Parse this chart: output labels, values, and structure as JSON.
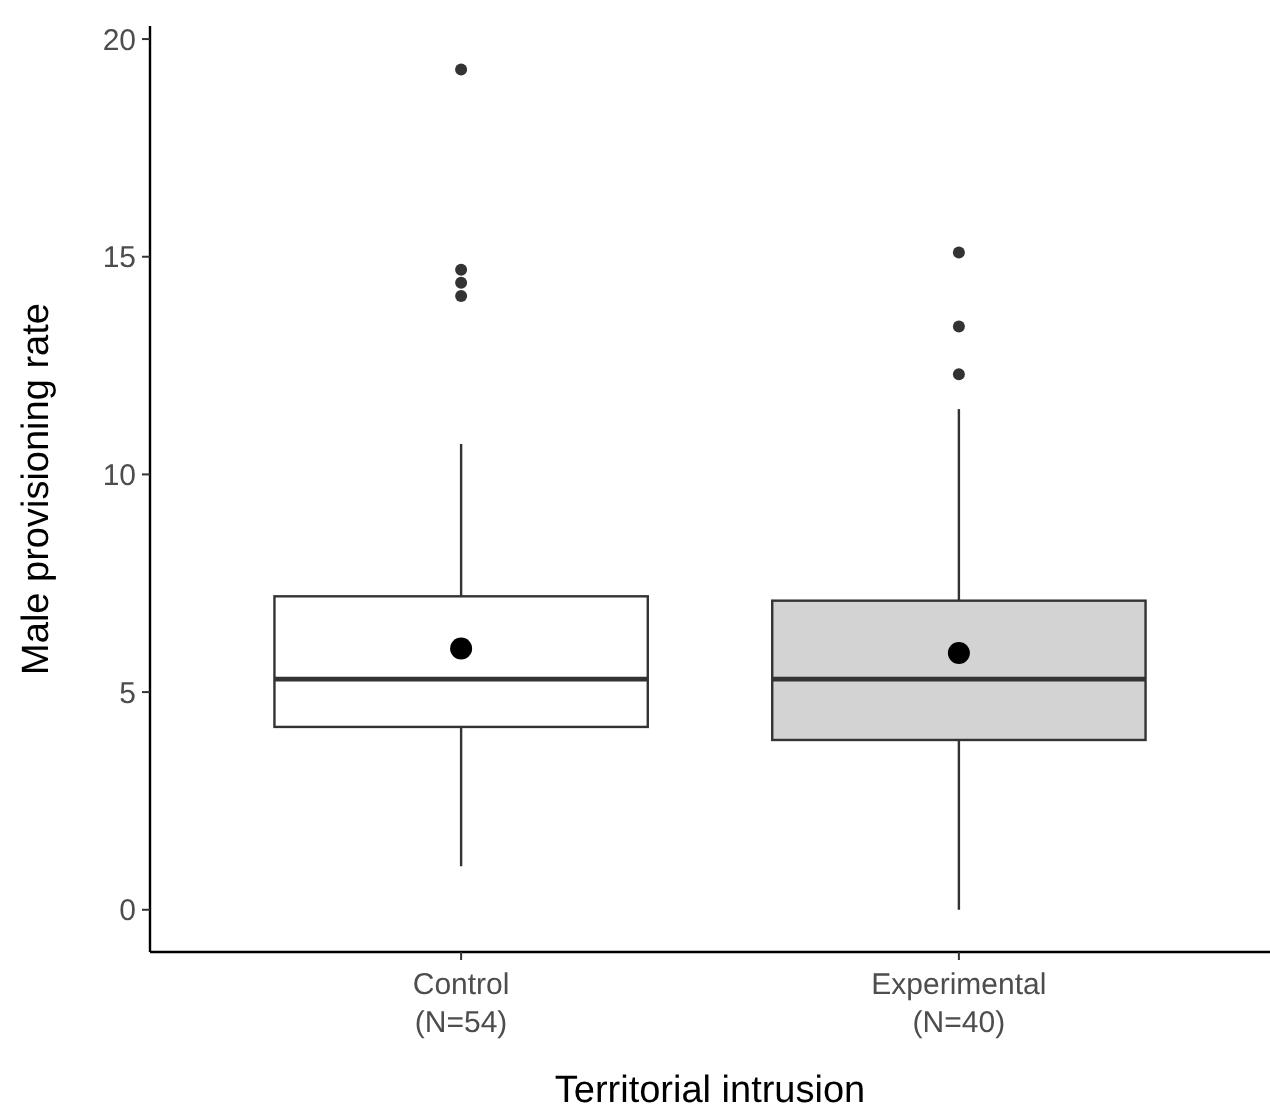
{
  "chart_data": {
    "type": "box",
    "xlabel": "Territorial intrusion",
    "ylabel": "Male provisioning rate",
    "categories": [
      "Control\n(N=54)",
      "Experimental\n(N=40)"
    ],
    "colors": [
      "#ffffff",
      "#d3d3d3"
    ],
    "boxes": [
      {
        "low": 1.0,
        "q1": 4.2,
        "median": 5.3,
        "q3": 7.2,
        "high": 10.7,
        "mean": 6.0,
        "outliers": [
          19.3,
          14.7,
          14.4,
          14.1
        ]
      },
      {
        "low": 0.0,
        "q1": 3.9,
        "median": 5.3,
        "q3": 7.1,
        "high": 11.5,
        "mean": 5.9,
        "outliers": [
          15.1,
          13.4,
          12.3
        ]
      }
    ],
    "ylim": [
      -0.97,
      20.3
    ],
    "yticks": [
      0,
      5,
      10,
      15,
      20
    ],
    "grid": false
  }
}
